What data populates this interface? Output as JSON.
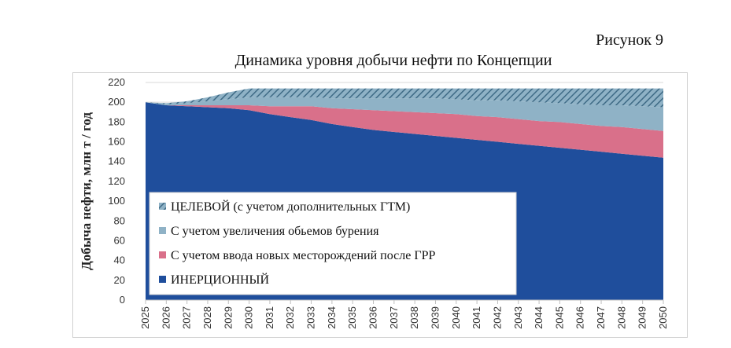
{
  "figure": {
    "number": "Рисунок 9",
    "title": "Динамика уровня добычи нефти по Концепции"
  },
  "chart_data": {
    "type": "area",
    "stacked": true,
    "ylabel": "Добыча нефти, млн т / год",
    "ylim": [
      0,
      220
    ],
    "yticks": [
      0,
      20,
      40,
      60,
      80,
      100,
      120,
      140,
      160,
      180,
      200,
      220
    ],
    "grid": true,
    "legend_position": "bottom-left",
    "x": [
      "2025",
      "2026",
      "2027",
      "2028",
      "2029",
      "2030",
      "2031",
      "2032",
      "2033",
      "2034",
      "2035",
      "2036",
      "2037",
      "2038",
      "2039",
      "2040",
      "2041",
      "2042",
      "2043",
      "2044",
      "2045",
      "2046",
      "2047",
      "2048",
      "2049",
      "2050"
    ],
    "series": [
      {
        "name": "ИНЕРЦИОННЫЙ",
        "color": "#1f4e9c",
        "values": [
          200,
          197,
          196,
          195,
          194,
          192,
          188,
          185,
          182,
          178,
          175,
          172,
          170,
          168,
          166,
          164,
          162,
          160,
          158,
          156,
          154,
          152,
          150,
          148,
          146,
          144
        ]
      },
      {
        "name": "С учетом ввода новых месторождений после ГРР",
        "color": "#d9708a",
        "values": [
          0,
          0,
          1,
          2,
          3,
          5,
          8,
          11,
          14,
          16,
          18,
          20,
          21,
          22,
          23,
          24,
          24,
          25,
          25,
          25,
          26,
          26,
          26,
          27,
          27,
          27
        ]
      },
      {
        "name": "С учетом увеличения обьемов бурения",
        "color": "#8fb2c6",
        "values": [
          0,
          1,
          2,
          4,
          6,
          8,
          9,
          9,
          9,
          10,
          11,
          12,
          13,
          14,
          15,
          15,
          16,
          17,
          18,
          19,
          19,
          20,
          21,
          22,
          23,
          24
        ]
      },
      {
        "name": "ЦЕЛЕВОЙ (с учетом дополнительных ГТМ)",
        "color": "#5e8aa4",
        "pattern": "hatch",
        "values": [
          0,
          1,
          2,
          4,
          7,
          9,
          9,
          9,
          9,
          10,
          10,
          10,
          10,
          10,
          10,
          11,
          12,
          12,
          13,
          14,
          15,
          16,
          17,
          17,
          18,
          19
        ]
      }
    ]
  }
}
